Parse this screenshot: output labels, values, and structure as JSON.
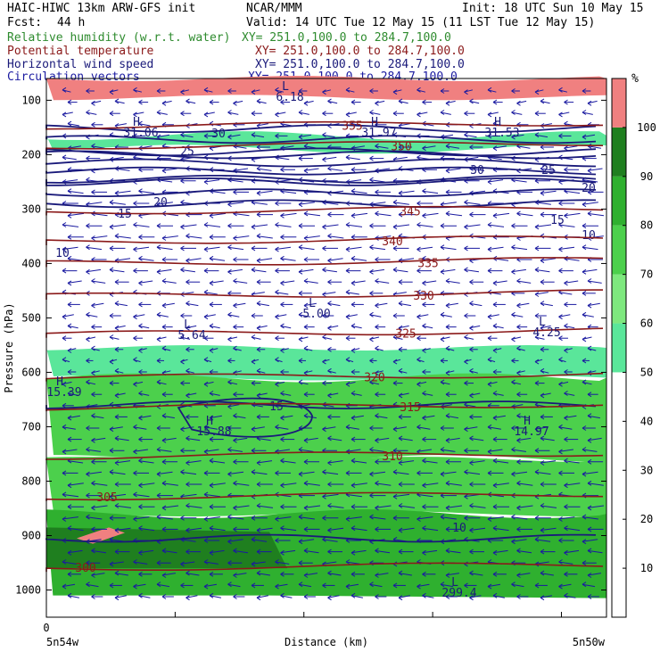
{
  "header": {
    "title_left": "HAIC-HIWC 13km ARW-GFS init",
    "org": "NCAR/MMM",
    "init": "Init: 18 UTC Sun 10 May 15",
    "fcst_label": "Fcst:",
    "fcst_value": "44 h",
    "valid": "Valid: 14 UTC Tue 12 May 15 (11 LST Tue 12 May 15)"
  },
  "fields": [
    {
      "name": "Relative humidity (w.r.t. water)",
      "xy": "XY= 251.0,100.0 to 284.7,100.0",
      "color": "#2e8b2e"
    },
    {
      "name": "Potential temperature",
      "xy": "XY= 251.0,100.0 to 284.7,100.0",
      "color": "#8b1a1a"
    },
    {
      "name": "Horizontal wind speed",
      "xy": "XY= 251.0,100.0 to 284.7,100.0",
      "color": "#1a1a7a"
    },
    {
      "name": "Circulation vectors",
      "xy": "XY= 251.0,100.0 to 284.7,100.0",
      "color": "#1a1aa0"
    }
  ],
  "chart_data": {
    "type": "heatmap",
    "subtype": "vertical cross-section with contour overlays",
    "xlabel": "Distance (km)",
    "ylabel": "Pressure (hPa)",
    "x_origin_label": "0",
    "x_start_label": "5n54w",
    "x_end_label": "5n50w",
    "y_ticks": [
      100,
      200,
      300,
      400,
      500,
      600,
      700,
      800,
      900,
      1000
    ],
    "ylim": [
      1050,
      60
    ],
    "colorbar": {
      "unit": "%",
      "ticks": [
        10,
        20,
        30,
        40,
        50,
        60,
        70,
        80,
        90,
        100
      ],
      "bands": [
        {
          "from": 0,
          "to": 50,
          "color": "#ffffff"
        },
        {
          "from": 50,
          "to": 60,
          "color": "#5ae69a"
        },
        {
          "from": 60,
          "to": 70,
          "color": "#7ee87e"
        },
        {
          "from": 70,
          "to": 80,
          "color": "#4cd04c"
        },
        {
          "from": 80,
          "to": 90,
          "color": "#2fb02f"
        },
        {
          "from": 90,
          "to": 100,
          "color": "#1f7f1f"
        },
        {
          "from": 100,
          "to": 110,
          "color": "#f08080"
        }
      ]
    },
    "rh_regions": [
      {
        "p_top": 60,
        "p_bottom": 95,
        "rh": 100
      },
      {
        "p_top": 165,
        "p_bottom": 190,
        "rh": 55
      },
      {
        "p_top": 555,
        "p_bottom": 610,
        "rh": 55
      },
      {
        "p_top": 610,
        "p_bottom": 760,
        "rh": 75
      },
      {
        "p_top": 760,
        "p_bottom": 860,
        "rh": 75
      },
      {
        "p_top": 860,
        "p_bottom": 1020,
        "rh": 85
      },
      {
        "p_top": 885,
        "p_bottom": 960,
        "rh": 95
      }
    ],
    "theta_contours": [
      {
        "label": "300",
        "p": 960
      },
      {
        "label": "305",
        "p": 830
      },
      {
        "label": "310",
        "p": 755
      },
      {
        "label": "315",
        "p": 665
      },
      {
        "label": "320",
        "p": 610
      },
      {
        "label": "325",
        "p": 530
      },
      {
        "label": "330",
        "p": 460
      },
      {
        "label": "335",
        "p": 400
      },
      {
        "label": "340",
        "p": 360
      },
      {
        "label": "345",
        "p": 305
      },
      {
        "label": "350",
        "p": 185
      },
      {
        "label": "355",
        "p": 148
      }
    ],
    "wind_speed_labels": [
      "10",
      "15",
      "20",
      "25",
      "30",
      "10",
      "15",
      "20",
      "25",
      "30",
      "10",
      "15"
    ],
    "extrema_labels": [
      {
        "type": "L",
        "value": "5.64"
      },
      {
        "type": "L",
        "value": "5.00"
      },
      {
        "type": "L",
        "value": "4.25"
      },
      {
        "type": "H",
        "value": "15.39"
      },
      {
        "type": "H",
        "value": "15.88"
      },
      {
        "type": "H",
        "value": "14.97"
      },
      {
        "type": "H",
        "value": "31.06"
      },
      {
        "type": "H",
        "value": "31.97"
      },
      {
        "type": "H",
        "value": "31.53"
      },
      {
        "type": "L",
        "value": "6.18"
      },
      {
        "type": "L",
        "value": "299.4"
      }
    ]
  }
}
